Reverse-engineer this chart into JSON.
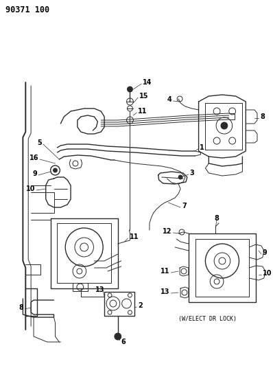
{
  "title": "90371 100",
  "bg_color": "#ffffff",
  "line_color": "#2a2a2a",
  "label_color": "#000000",
  "title_fontsize": 8.5,
  "label_fontsize": 7,
  "annot_fontsize": 6,
  "subtitle": "(W/ELECT DR LOCK)"
}
